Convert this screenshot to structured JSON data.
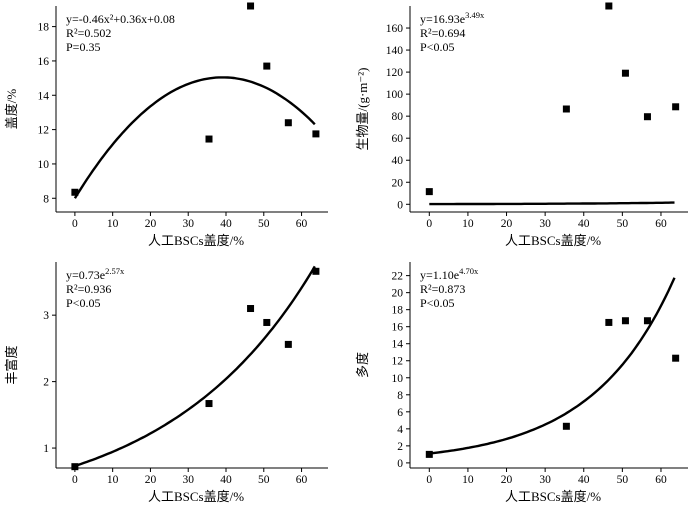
{
  "chart_data": [
    {
      "id": "coverage",
      "type": "scatter",
      "title": "",
      "xlabel": "人工BSCs盖度/%",
      "ylabel": "盖度/%",
      "xlim": [
        -5,
        67
      ],
      "ylim": [
        7.2,
        19.2
      ],
      "xticks": [
        0,
        10,
        20,
        30,
        40,
        50,
        60
      ],
      "yticks": [
        8,
        10,
        12,
        14,
        16,
        18
      ],
      "points": [
        [
          0,
          8.35
        ],
        [
          35.5,
          11.45
        ],
        [
          46.5,
          19.2
        ],
        [
          50.8,
          15.7
        ],
        [
          56.5,
          12.4
        ],
        [
          63.8,
          11.75
        ]
      ],
      "fit": {
        "kind": "poly2",
        "a": -0.46,
        "b": 0.36,
        "c": 0.08,
        "x_scale": 0.01,
        "y_scale": 100,
        "x_range": [
          0,
          63.5
        ]
      },
      "annotation": {
        "equation": "y=-0.46x²+0.36x+0.08",
        "r2": "R²=0.502",
        "p": "P=0.35"
      }
    },
    {
      "id": "biomass",
      "type": "scatter",
      "title": "",
      "xlabel": "人工BSCs盖度/%",
      "ylabel": "生物量/(g·m⁻²)",
      "xlim": [
        -5,
        67
      ],
      "ylim": [
        -7,
        180
      ],
      "xticks": [
        0,
        10,
        20,
        30,
        40,
        50,
        60
      ],
      "yticks": [
        0,
        20,
        40,
        60,
        80,
        100,
        120,
        140,
        160
      ],
      "points": [
        [
          0,
          11.5
        ],
        [
          35.5,
          86.5
        ],
        [
          46.5,
          180
        ],
        [
          50.8,
          119
        ],
        [
          56.5,
          79.5
        ],
        [
          63.8,
          88.5
        ]
      ],
      "fit": {
        "kind": "exp",
        "a": 16.93,
        "b": 3.49,
        "x_scale": 0.01,
        "y_scale": 0.01,
        "x_range": [
          0,
          63.5
        ]
      },
      "annotation": {
        "equation": "y=16.93e3.49x",
        "r2": "R²=0.694",
        "p": "P<0.05"
      }
    },
    {
      "id": "richness",
      "type": "scatter",
      "title": "",
      "xlabel": "人工BSCs盖度/%",
      "ylabel": "丰富度",
      "xlim": [
        -5,
        67
      ],
      "ylim": [
        0.7,
        3.8
      ],
      "xticks": [
        0,
        10,
        20,
        30,
        40,
        50,
        60
      ],
      "yticks": [
        1,
        2,
        3
      ],
      "points": [
        [
          0,
          0.72
        ],
        [
          35.5,
          1.67
        ],
        [
          46.5,
          3.1
        ],
        [
          50.8,
          2.89
        ],
        [
          56.5,
          2.56
        ],
        [
          63.8,
          3.66
        ]
      ],
      "fit": {
        "kind": "exp",
        "a": 0.73,
        "b": 2.57,
        "x_scale": 0.01,
        "y_scale": 1,
        "x_range": [
          0,
          63.5
        ]
      },
      "annotation": {
        "equation": "y=0.73e2.57x",
        "r2": "R²=0.936",
        "p": "P<0.05"
      }
    },
    {
      "id": "diversity",
      "type": "scatter",
      "title": "",
      "xlabel": "人工BSCs盖度/%",
      "ylabel": "多度",
      "xlim": [
        -5,
        67
      ],
      "ylim": [
        -0.6,
        23.6
      ],
      "xticks": [
        0,
        10,
        20,
        30,
        40,
        50,
        60
      ],
      "yticks": [
        0,
        2,
        4,
        6,
        8,
        10,
        12,
        14,
        16,
        18,
        20,
        22
      ],
      "points": [
        [
          0,
          1.0
        ],
        [
          35.5,
          4.3
        ],
        [
          46.5,
          16.5
        ],
        [
          50.8,
          16.7
        ],
        [
          56.5,
          16.7
        ],
        [
          63.8,
          12.3
        ]
      ],
      "fit": {
        "kind": "exp",
        "a": 1.1,
        "b": 4.7,
        "x_scale": 0.01,
        "y_scale": 1,
        "x_range": [
          0,
          63.5
        ]
      },
      "annotation": {
        "equation": "y=1.10e4.70x",
        "r2": "R²=0.873",
        "p": "P<0.05"
      }
    }
  ]
}
